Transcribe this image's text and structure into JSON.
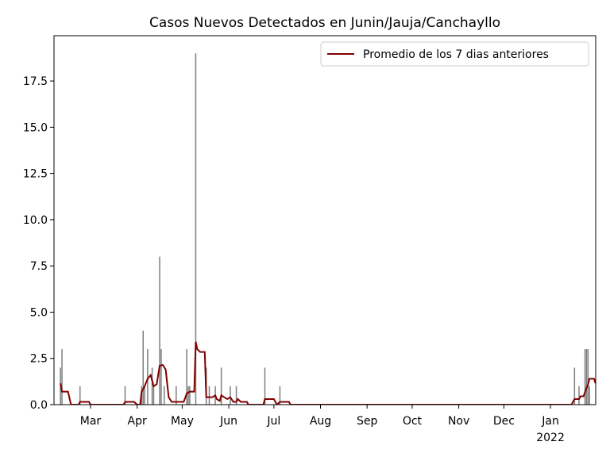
{
  "chart_data": {
    "type": "bar",
    "title": "Casos Nuevos Detectados en Junin/Jauja/Canchayllo",
    "xlim": [
      35.7,
      396.1
    ],
    "xticks": [
      {
        "value": 60,
        "label": "Mar"
      },
      {
        "value": 91,
        "label": "Apr"
      },
      {
        "value": 121,
        "label": "May"
      },
      {
        "value": 152,
        "label": "Jun"
      },
      {
        "value": 182,
        "label": "Jul"
      },
      {
        "value": 213,
        "label": "Aug"
      },
      {
        "value": 244,
        "label": "Sep"
      },
      {
        "value": 274,
        "label": "Oct"
      },
      {
        "value": 305,
        "label": "Nov"
      },
      {
        "value": 335,
        "label": "Dec"
      },
      {
        "value": 366,
        "label": "Jan\n2022"
      }
    ],
    "ylim": [
      0,
      19.95
    ],
    "yticks": [
      {
        "value": 0,
        "label": "0.0"
      },
      2.5,
      {
        "value": 5,
        "label": "5.0"
      },
      7.5,
      {
        "value": 10,
        "label": "10.0"
      },
      12.5,
      {
        "value": 15,
        "label": "15.0"
      },
      17.5
    ],
    "legend": "upper right",
    "series": [
      {
        "type": "bar",
        "color": "#808080",
        "x": [
          40,
          41,
          53,
          83,
          94,
          95,
          96,
          98,
          101,
          102,
          106,
          107,
          109,
          117,
          124,
          125,
          126,
          130,
          137,
          139,
          143,
          147,
          153,
          157,
          176,
          186,
          382,
          385,
          389,
          390,
          391,
          392
        ],
        "values": [
          2,
          3,
          1,
          1,
          1,
          4,
          1,
          3,
          2,
          1,
          8,
          3,
          1,
          1,
          3,
          1,
          1,
          19,
          2,
          1,
          1,
          2,
          1,
          1,
          2,
          1,
          2,
          1,
          3,
          3,
          3,
          1
        ]
      },
      {
        "type": "line",
        "name": "Promedio de los 7 dias anteriores",
        "color": "#800000",
        "x": [
          40,
          41,
          45,
          47,
          52,
          53,
          59,
          60,
          82,
          83,
          89,
          91,
          93,
          94,
          96,
          98,
          100,
          102,
          104,
          106,
          108,
          110,
          112,
          114,
          122,
          124,
          126,
          129,
          130,
          131,
          133,
          136,
          137,
          141,
          143,
          144,
          146,
          147,
          149,
          151,
          153,
          155,
          157,
          158,
          160,
          164,
          165,
          175,
          176,
          182,
          184,
          186,
          192,
          193,
          380,
          382,
          385,
          386,
          388,
          390,
          391,
          392,
          395,
          396
        ],
        "values": [
          1.15,
          0.7,
          0.7,
          0,
          0,
          0.15,
          0.15,
          0,
          0,
          0.15,
          0.15,
          0,
          0,
          0.7,
          1.0,
          1.4,
          1.6,
          1.0,
          1.1,
          2.1,
          2.15,
          1.9,
          0.4,
          0.15,
          0.15,
          0.6,
          0.7,
          0.7,
          3.4,
          3.0,
          2.85,
          2.85,
          0.4,
          0.4,
          0.5,
          0.3,
          0.2,
          0.5,
          0.4,
          0.3,
          0.4,
          0.15,
          0.15,
          0.3,
          0.15,
          0.15,
          0,
          0,
          0.3,
          0.3,
          0,
          0.15,
          0.15,
          0,
          0,
          0.3,
          0.3,
          0.45,
          0.45,
          0.9,
          1.1,
          1.4,
          1.4,
          1.15
        ]
      }
    ]
  }
}
